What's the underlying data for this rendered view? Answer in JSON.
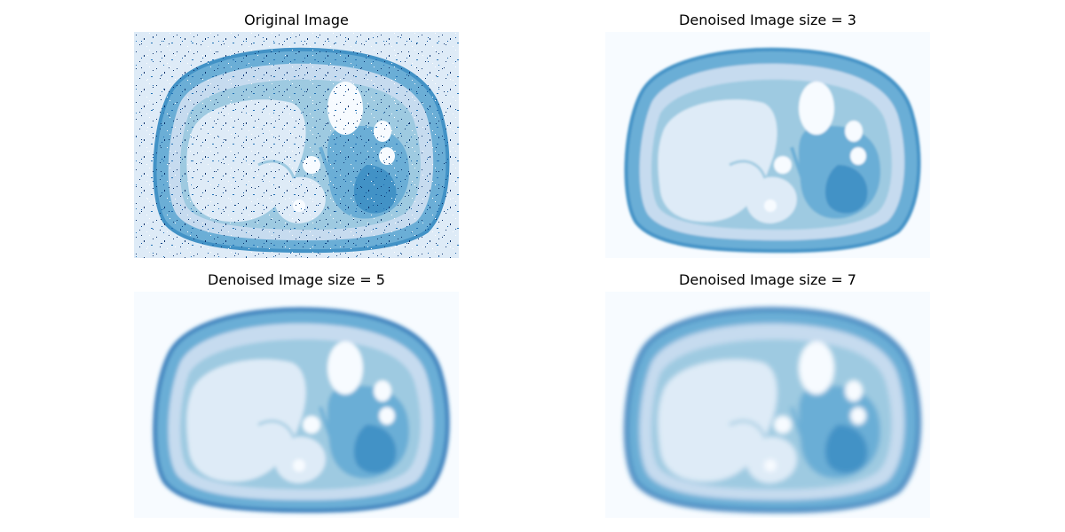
{
  "figure": {
    "colormap": [
      "#f7fbff",
      "#deebf7",
      "#c6dbef",
      "#9ecae1",
      "#6baed6",
      "#4292c6",
      "#2171b5",
      "#08519c",
      "#08306b"
    ],
    "panels": [
      {
        "title": "Original Image",
        "noise": "salt-and-pepper",
        "blur": 0
      },
      {
        "title": "Denoised Image size = 3",
        "noise": "none",
        "blur": 1.2
      },
      {
        "title": "Denoised Image size = 5",
        "noise": "none",
        "blur": 2.0
      },
      {
        "title": "Denoised Image size = 7",
        "noise": "none",
        "blur": 2.8
      }
    ]
  }
}
